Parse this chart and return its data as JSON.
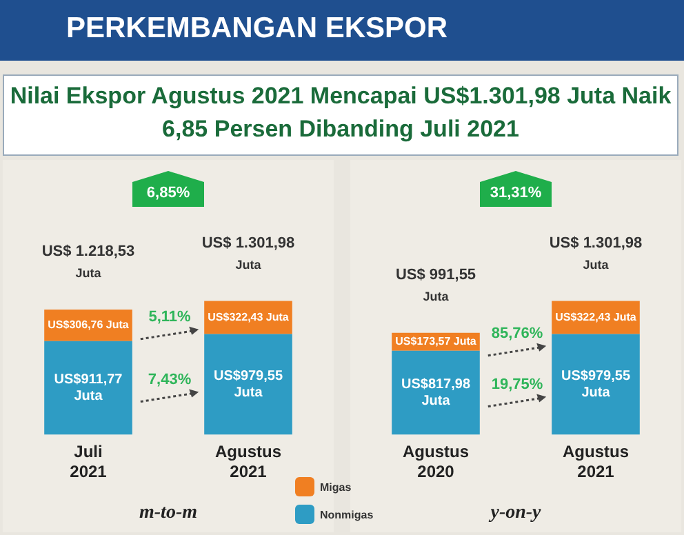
{
  "chart_data": [
    {
      "type": "bar",
      "title": "PERKEMBANGAN EKSPOR",
      "subtitle": "Nilai Ekspor Agustus 2021 Mencapai US$1.301,98 Juta Naik 6,85 Persen Dibanding Juli 2021",
      "stacked": true,
      "tick_labels": "x",
      "grid": false,
      "legend": "bottom right",
      "categories": [
        "Juli 2021",
        "Agustus 2021"
      ],
      "series": [
        {
          "name": "Nonmigas",
          "color": "#2e9cc4",
          "values": [
            911.77,
            979.55
          ],
          "value_labels": [
            "US$911,77 Juta",
            "US$979,55 Juta"
          ]
        },
        {
          "name": "Migas",
          "color": "#f07f22",
          "values": [
            306.76,
            322.43
          ],
          "value_labels": [
            "US$306,76 Juta",
            "US$322,43 Juta"
          ]
        }
      ],
      "totals": [
        "US$ 1.218,53 Juta",
        "US$ 1.301,98 Juta"
      ],
      "annotations": [
        "6,85%",
        "7,43%",
        "5,11%",
        "m-to-m"
      ]
    },
    {
      "type": "bar",
      "stacked": true,
      "tick_labels": "x",
      "grid": false,
      "categories": [
        "Agustus 2020",
        "Agustus 2021"
      ],
      "series": [
        {
          "color": "#2e9cc4",
          "values": [
            817.98,
            979.55
          ],
          "value_labels": [
            "US$817,98 Juta",
            "US$979,55 Juta"
          ]
        },
        {
          "color": "#f07f22",
          "values": [
            173.57,
            322.43
          ],
          "value_labels": [
            "US$173,57 Juta",
            "US$322,43 Juta"
          ]
        }
      ],
      "totals": [
        "US$ 991,55 Juta",
        "US$ 1.301,98 Juta"
      ],
      "annotations": [
        "31,31%",
        "19,75%",
        "85,76%",
        "y-on-y"
      ]
    }
  ]
}
